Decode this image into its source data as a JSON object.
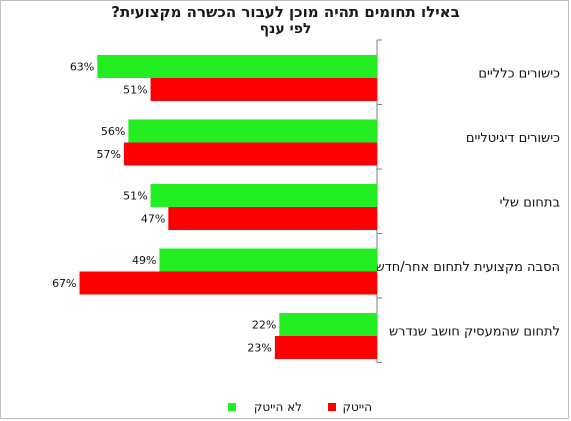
{
  "chart_data": {
    "type": "bar",
    "orientation": "horizontal",
    "title": "באילו תחומים תהיה מוכן לעבור הכשרה מקצועית?",
    "subtitle": "לפי ענף",
    "categories": [
      "כישורים כלליים",
      "כישורים דיגיטליים",
      "בתחום שלי",
      "הסבה מקצועית לתחום אחר/חדש",
      "לתחום שהמעסיק חושב שנדרש"
    ],
    "series": [
      {
        "name": "לא הייטק",
        "color": "#22ee22",
        "values": [
          63,
          56,
          51,
          49,
          22
        ],
        "labels": [
          "63%",
          "56%",
          "51%",
          "49%",
          "22%"
        ]
      },
      {
        "name": "הייטק",
        "color": "#ff0000",
        "values": [
          51,
          57,
          47,
          67,
          23
        ],
        "labels": [
          "51%",
          "57%",
          "47%",
          "67%",
          "23%"
        ]
      }
    ],
    "xlim": [
      0,
      75
    ],
    "grid": false,
    "legend_position": "bottom"
  }
}
